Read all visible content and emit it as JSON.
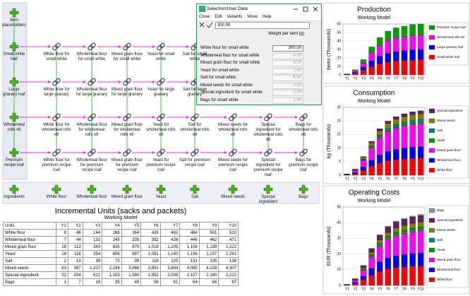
{
  "diagram": {
    "products": [
      "Item placeholders",
      "Small white loaf",
      "Large granary loaf",
      "Wholemeal rolls x6",
      "Premium recipe loaf"
    ],
    "rows": [
      [
        "White flour for small white",
        "Wholemeal flour for small white",
        "Mixed grain flour for small white",
        "Yeast for small white",
        "Salt for small white"
      ],
      [
        "White flour for large granary",
        "Wholemeal flour for large granary",
        "Mixed grain flour for large granary",
        "Yeast for large granary",
        "Salt for large granary"
      ],
      [
        "White flour for wholemeal rolls x6",
        "Wholemeal flour for wholemeal rolls x6",
        "Mixed grain flour for wholemeal rolls x6",
        "Yeast for wholemeal rolls x6",
        "Salt for wholemeal rolls x6",
        "Mixed seeds for wholemeal rolls x6",
        "Special ingredient for wholemeal rolls x6",
        "Bags for wholemeal rolls x6"
      ],
      [
        "White flour for premium recipe loaf",
        "Wholemeal flour for premium recipe loaf",
        "Mixed grain flour for premium recipe loaf",
        "Yeast for premium recipe loaf",
        "Salt for premium recipe loaf",
        "Mixed seeds for premium recipe loaf",
        "Special ingredient for premium recipe loaf",
        "Bags for premium recipe loaf"
      ]
    ],
    "ingredients_label": "Ingredients",
    "ingredients": [
      "White flour",
      "Wholemeal flour",
      "Mixed grain flour",
      "Yeast",
      "Salt",
      "Mixed seeds",
      "Special ingredient",
      "Bags"
    ]
  },
  "dialog": {
    "title": "Selection/User Data",
    "menu": [
      "Close",
      "Edit",
      "Variants",
      "Move",
      "Help"
    ],
    "input": "300.00",
    "column": "Weight per item (g)",
    "rows": [
      [
        "White flour for small white",
        "300.00"
      ],
      [
        "Wholemeal flour for small white",
        "0.00"
      ],
      [
        "Mixed grain flour for small white",
        "0.00"
      ],
      [
        "Yeast for small white",
        "1.60"
      ],
      [
        "Salt for small white",
        "6.00"
      ],
      [
        "Mixed seeds for small white",
        "0.00"
      ],
      [
        "Special ingredient for small white",
        "0.00"
      ],
      [
        "Bags for small white",
        "1.00"
      ]
    ]
  },
  "table": {
    "title": "Incremental Units (sacks and packets)",
    "subtitle": "Working Model",
    "header": [
      "Units",
      "Y1",
      "Y2",
      "Y3",
      "Y4",
      "Y5",
      "Y6",
      "Y7",
      "Y8",
      "Y9",
      "Y10"
    ],
    "rows": [
      [
        "White flour",
        "8",
        "48",
        "144",
        "266",
        "364",
        "426",
        "462",
        "484",
        "501",
        "510"
      ],
      [
        "Wholemeal flour",
        "7",
        "44",
        "132",
        "245",
        "335",
        "392",
        "426",
        "446",
        "462",
        "471"
      ],
      [
        "Mixed grain flour",
        "18",
        "113",
        "343",
        "635",
        "870",
        "1,019",
        "1,105",
        "1,158",
        "1,199",
        "1,222"
      ],
      [
        "Yeast",
        "18",
        "116",
        "354",
        "656",
        "897",
        "1,051",
        "1,140",
        "1,196",
        "1,237",
        "1,261"
      ],
      [
        "Salt",
        "2",
        "13",
        "39",
        "72",
        "99",
        "116",
        "125",
        "131",
        "135",
        "138"
      ],
      [
        "Mixed seeds",
        "63",
        "397",
        "1,207",
        "2,239",
        "3,066",
        "3,591",
        "3,894",
        "4,085",
        "4,228",
        "4,307"
      ],
      [
        "Special ingredient",
        "32",
        "204",
        "621",
        "1,153",
        "1,580",
        "1,852",
        "2,008",
        "2,107",
        "2,180",
        "2,222"
      ],
      [
        "Bags",
        "1",
        "7",
        "19",
        "35",
        "48",
        "56",
        "61",
        "64",
        "66",
        "67"
      ]
    ]
  },
  "chart_data": [
    {
      "type": "bar",
      "stacked": true,
      "title": "Production",
      "subtitle": "Working Model",
      "y_label": "Items (Thousands)",
      "categories": [
        "Y1",
        "Y2",
        "Y3",
        "Y4",
        "Y5",
        "Y6",
        "Y7",
        "Y8",
        "Y9",
        "Y10"
      ],
      "ylim": [
        0,
        60
      ],
      "yticks": [
        0,
        10,
        20,
        30,
        40,
        50,
        60
      ],
      "grid": true,
      "series": [
        {
          "name": "Small white loaf",
          "color": "#ff0000",
          "values": [
            0.3,
            1.8,
            5.5,
            10,
            13,
            15,
            16.5,
            17,
            17.5,
            18
          ]
        },
        {
          "name": "Large granary loaf",
          "color": "#0000ff",
          "values": [
            0.2,
            1.2,
            3.5,
            6.5,
            9,
            10.5,
            11,
            11.5,
            12,
            12
          ]
        },
        {
          "name": "Wholemeal rolls x6",
          "color": "#ff00ff",
          "values": [
            0.3,
            1.8,
            5,
            9.5,
            12.5,
            15,
            16,
            16.5,
            17,
            17
          ]
        },
        {
          "name": "Premium recipe loaf",
          "color": "#00a000",
          "values": [
            0.2,
            1.2,
            4,
            7,
            9.5,
            11,
            12,
            12.5,
            13,
            13
          ]
        }
      ]
    },
    {
      "type": "bar",
      "stacked": true,
      "title": "Consumption",
      "subtitle": "Working Model",
      "y_label": "kg (Thousands)",
      "categories": [
        "Y1",
        "Y2",
        "Y3",
        "Y4",
        "Y5",
        "Y6",
        "Y7",
        "Y8",
        "Y9",
        "Y10"
      ],
      "ylim": [
        0,
        25
      ],
      "yticks": [
        0,
        5,
        10,
        15,
        20,
        25
      ],
      "grid": true,
      "series": [
        {
          "name": "White flour",
          "color": "#ff0000",
          "values": [
            0.1,
            0.6,
            1.8,
            3.3,
            4.5,
            5.3,
            5.7,
            6,
            6.2,
            6.3
          ]
        },
        {
          "name": "Wholemeal flour",
          "color": "#0000ff",
          "values": [
            0.1,
            0.4,
            1.2,
            2.2,
            3,
            3.5,
            3.8,
            4,
            4.1,
            4.2
          ]
        },
        {
          "name": "Mixed grain flour",
          "color": "#ff00ff",
          "values": [
            0.15,
            0.8,
            2.5,
            4.5,
            6.2,
            7.2,
            7.8,
            8.2,
            8.4,
            8.5
          ]
        },
        {
          "name": "Yeast",
          "color": "#00a000",
          "values": [
            0.01,
            0.05,
            0.15,
            0.3,
            0.4,
            0.45,
            0.5,
            0.5,
            0.55,
            0.55
          ]
        },
        {
          "name": "Salt",
          "color": "#008080",
          "values": [
            0.02,
            0.1,
            0.3,
            0.5,
            0.7,
            0.8,
            0.9,
            0.9,
            0.95,
            1
          ]
        },
        {
          "name": "Mixed seeds",
          "color": "#808000",
          "values": [
            0.03,
            0.2,
            0.6,
            1.1,
            1.5,
            1.8,
            1.9,
            2,
            2.1,
            2.1
          ]
        },
        {
          "name": "Special ingredient",
          "color": "#602060",
          "values": [
            0.02,
            0.1,
            0.3,
            0.6,
            0.8,
            0.9,
            1,
            1.05,
            1.1,
            1.1
          ]
        }
      ]
    },
    {
      "type": "bar",
      "stacked": true,
      "title": "Operating Costs",
      "subtitle": "Working Model",
      "y_label": "EUR (Thousands)",
      "categories": [
        "Y1",
        "Y2",
        "Y3",
        "Y4",
        "Y5",
        "Y6",
        "Y7",
        "Y8",
        "Y9",
        "Y10"
      ],
      "ylim": [
        0,
        50
      ],
      "yticks": [
        0,
        10,
        20,
        30,
        40,
        50
      ],
      "grid": true,
      "series": [
        {
          "name": "White flour",
          "color": "#ff0000",
          "values": [
            0.2,
            1.2,
            3.5,
            6.5,
            9,
            10.5,
            11.3,
            11.8,
            12.2,
            12.4
          ]
        },
        {
          "name": "Wholemeal flour",
          "color": "#0000ff",
          "values": [
            0.1,
            0.8,
            2.3,
            4.3,
            5.9,
            6.9,
            7.5,
            7.8,
            8.1,
            8.3
          ]
        },
        {
          "name": "Mixed grain flour",
          "color": "#ff00ff",
          "values": [
            0.2,
            1.3,
            4,
            7.4,
            10.1,
            11.8,
            12.8,
            13.4,
            13.9,
            14.2
          ]
        },
        {
          "name": "Yeast",
          "color": "#00a000",
          "values": [
            0.03,
            0.2,
            0.5,
            1,
            1.3,
            1.5,
            1.7,
            1.7,
            1.8,
            1.8
          ]
        },
        {
          "name": "Salt",
          "color": "#008080",
          "values": [
            0.01,
            0.05,
            0.15,
            0.3,
            0.4,
            0.45,
            0.5,
            0.5,
            0.5,
            0.55
          ]
        },
        {
          "name": "Mixed seeds",
          "color": "#808000",
          "values": [
            0.05,
            0.3,
            0.9,
            1.6,
            2.2,
            2.6,
            2.8,
            2.9,
            3,
            3.1
          ]
        },
        {
          "name": "Special ingredient",
          "color": "#602060",
          "values": [
            0.06,
            0.4,
            1.2,
            2.2,
            3,
            3.5,
            3.8,
            4,
            4.1,
            4.2
          ]
        },
        {
          "name": "Bags",
          "color": "#909090",
          "values": [
            0.01,
            0.07,
            0.2,
            0.35,
            0.5,
            0.55,
            0.6,
            0.65,
            0.65,
            0.7
          ]
        }
      ]
    }
  ]
}
